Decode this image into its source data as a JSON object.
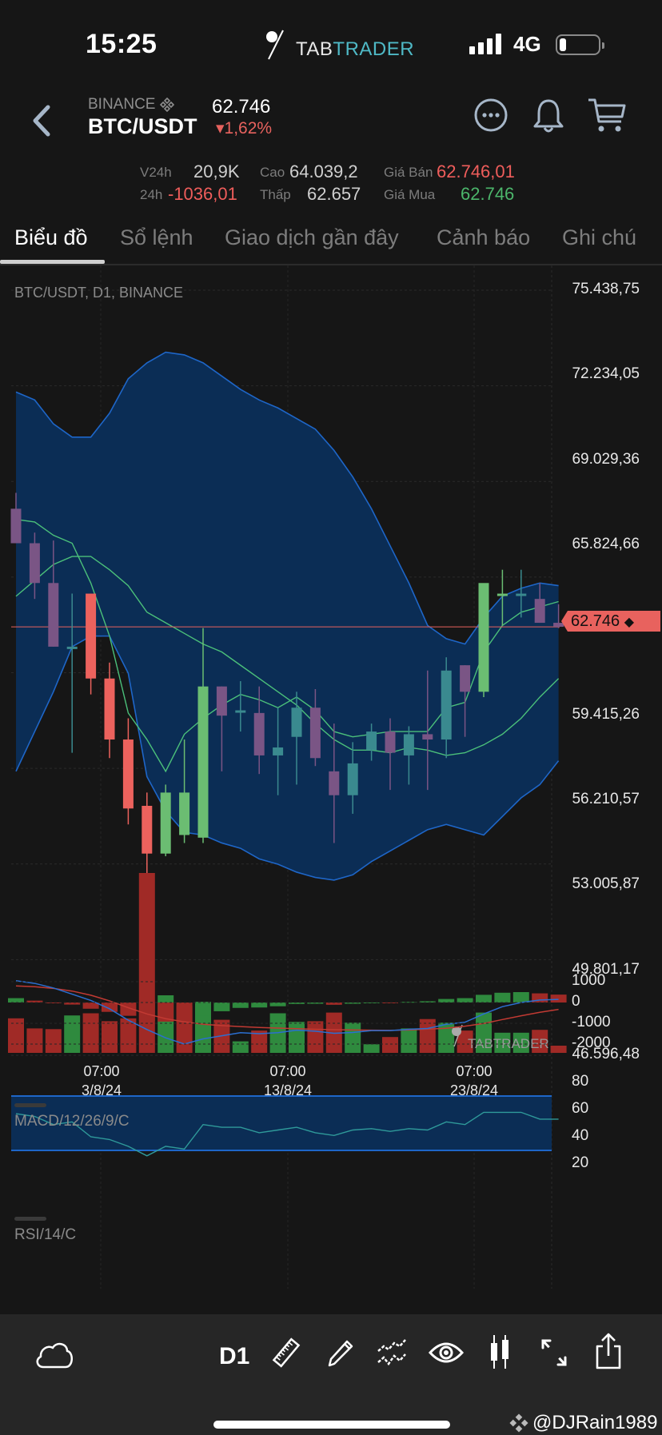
{
  "status_bar": {
    "time": "15:25",
    "logo_part1": "TAB",
    "logo_part2": "TRADER",
    "network": "4G",
    "signal_bars": 4
  },
  "header": {
    "back_icon": "chevron-left-icon",
    "exchange": "BINANCE",
    "pair": "BTC/USDT",
    "last_price": "62.746",
    "change_pct": "▾1,62%",
    "actions": [
      "more-icon",
      "bell-icon",
      "cart-icon"
    ]
  },
  "stats": {
    "v24h_label": "V24h",
    "v24h_value": "20,9K",
    "c24h_label": "24h",
    "c24h_value": "-1036,01",
    "high_label": "Cao",
    "high_value": "64.039,2",
    "low_label": "Thấp",
    "low_value": "62.657",
    "ask_label": "Giá Bán",
    "ask_value": "62.746,01",
    "bid_label": "Giá Mua",
    "bid_value": "62.746"
  },
  "tabs": [
    {
      "label": "Biểu đồ",
      "active": true
    },
    {
      "label": "Sổ lệnh",
      "active": false
    },
    {
      "label": "Giao dịch gần đây",
      "active": false
    },
    {
      "label": "Cảnh báo",
      "active": false
    },
    {
      "label": "Ghi chú",
      "active": false
    }
  ],
  "chart": {
    "title": "BTC/USDT, D1, BINANCE",
    "price_tag": "62.746",
    "watermark": "TABTRADER",
    "y_axis": [
      "75.438,75",
      "72.234,05",
      "69.029,36",
      "65.824,66",
      "59.415,26",
      "56.210,57",
      "53.005,87",
      "49.801,17",
      "46.596,48"
    ],
    "x_axis": [
      {
        "time": "07:00",
        "date": "3/8/24"
      },
      {
        "time": "07:00",
        "date": "13/8/24"
      },
      {
        "time": "07:00",
        "date": "23/8/24"
      }
    ],
    "macd_label": "MACD/12/26/9/C",
    "macd_axis": [
      "1000",
      "0",
      "-1000",
      "-2000"
    ],
    "rsi_label": "RSI/14/C",
    "rsi_axis": [
      "80",
      "60",
      "40",
      "20"
    ]
  },
  "chart_data": {
    "type": "candlestick",
    "title": "BTC/USDT, D1, BINANCE",
    "ylim": [
      46596.48,
      75438.75
    ],
    "ohlc": [
      [
        67200,
        67800,
        65900,
        65900
      ],
      [
        65900,
        66300,
        63800,
        64400
      ],
      [
        64400,
        66000,
        62000,
        62000
      ],
      [
        62000,
        64000,
        58000,
        62000
      ],
      [
        64000,
        64000,
        60200,
        60800
      ],
      [
        60800,
        61400,
        57800,
        58500
      ],
      [
        58500,
        59300,
        55300,
        55900
      ],
      [
        56000,
        56500,
        49300,
        54200
      ],
      [
        54200,
        56800,
        54100,
        56500
      ],
      [
        54900,
        58500,
        54600,
        56500
      ],
      [
        54800,
        62700,
        54600,
        60500
      ],
      [
        60500,
        60500,
        57300,
        59400
      ],
      [
        59600,
        60700,
        58800,
        59600
      ],
      [
        59500,
        60500,
        57200,
        57900
      ],
      [
        57900,
        59700,
        56400,
        58200
      ],
      [
        58600,
        60300,
        56800,
        59700
      ],
      [
        59700,
        60400,
        57500,
        57800
      ],
      [
        57300,
        59100,
        54600,
        56400
      ],
      [
        56400,
        58400,
        55700,
        57600
      ],
      [
        58100,
        59100,
        57700,
        58800
      ],
      [
        58800,
        59300,
        56600,
        58000
      ],
      [
        57900,
        59000,
        56800,
        58700
      ],
      [
        58700,
        61100,
        56600,
        58500
      ],
      [
        58500,
        61600,
        57800,
        61100
      ],
      [
        61300,
        61300,
        58600,
        60300
      ],
      [
        60300,
        64200,
        60100,
        64400
      ],
      [
        64000,
        64900,
        62800,
        64000
      ],
      [
        64000,
        64900,
        63100,
        64000
      ],
      [
        63800,
        64400,
        62900,
        62900
      ],
      [
        62900,
        63600,
        62700,
        62750
      ]
    ],
    "bollinger_upper": [
      71600,
      71300,
      70400,
      69900,
      69900,
      70800,
      72100,
      72700,
      73100,
      73000,
      72700,
      72200,
      71700,
      71300,
      71000,
      70600,
      70200,
      69400,
      68400,
      67200,
      65800,
      64400,
      62800,
      62300,
      62100,
      63100,
      63900,
      64200,
      64400,
      64300
    ],
    "bollinger_lower": [
      57300,
      58800,
      60300,
      62000,
      62400,
      62400,
      61000,
      57100,
      55800,
      55000,
      54900,
      54600,
      54400,
      54000,
      53800,
      53500,
      53300,
      53200,
      53400,
      53900,
      54300,
      54700,
      55100,
      55300,
      55100,
      54900,
      55600,
      56300,
      56800,
      57700
    ],
    "ma_fast": [
      66800,
      66700,
      66200,
      65900,
      64400,
      62400,
      59500,
      58500,
      57300,
      58700,
      59300,
      59800,
      60200,
      60000,
      59700,
      60100,
      59600,
      58800,
      58600,
      58700,
      58800,
      58800,
      58800,
      59700,
      59900,
      61800,
      62800,
      63300,
      63500,
      63700
    ],
    "ma_slow": [
      63900,
      64500,
      65100,
      65400,
      65400,
      64900,
      64300,
      63300,
      62900,
      62500,
      62100,
      61800,
      61300,
      60800,
      60300,
      59800,
      59100,
      58500,
      58100,
      58100,
      58000,
      58200,
      58100,
      57900,
      58000,
      58300,
      58700,
      59300,
      60100,
      60800
    ],
    "volume": [
      {
        "v": 48,
        "c": "red"
      },
      {
        "v": 34,
        "c": "red"
      },
      {
        "v": 33,
        "c": "red"
      },
      {
        "v": 52,
        "c": "green"
      },
      {
        "v": 55,
        "c": "red"
      },
      {
        "v": 44,
        "c": "red"
      },
      {
        "v": 48,
        "c": "red"
      },
      {
        "v": 250,
        "c": "red"
      },
      {
        "v": 80,
        "c": "green"
      },
      {
        "v": 65,
        "c": "red"
      },
      {
        "v": 71,
        "c": "green"
      },
      {
        "v": 46,
        "c": "red"
      },
      {
        "v": 16,
        "c": "green"
      },
      {
        "v": 31,
        "c": "red"
      },
      {
        "v": 55,
        "c": "green"
      },
      {
        "v": 43,
        "c": "green"
      },
      {
        "v": 44,
        "c": "red"
      },
      {
        "v": 56,
        "c": "red"
      },
      {
        "v": 42,
        "c": "green"
      },
      {
        "v": 12,
        "c": "green"
      },
      {
        "v": 22,
        "c": "red"
      },
      {
        "v": 34,
        "c": "green"
      },
      {
        "v": 47,
        "c": "red"
      },
      {
        "v": 42,
        "c": "green"
      },
      {
        "v": 31,
        "c": "red"
      },
      {
        "v": 56,
        "c": "green"
      },
      {
        "v": 28,
        "c": "green"
      },
      {
        "v": 28,
        "c": "green"
      },
      {
        "v": 32,
        "c": "red"
      },
      {
        "v": 10,
        "c": "red"
      }
    ],
    "macd_hist": [
      210,
      90,
      -30,
      -100,
      -300,
      -450,
      -640,
      -880,
      -920,
      -930,
      -620,
      -420,
      -260,
      -240,
      -180,
      -70,
      -60,
      -110,
      -60,
      -10,
      -10,
      30,
      60,
      170,
      210,
      370,
      470,
      500,
      440,
      380
    ],
    "macd_line": [
      1050,
      920,
      700,
      400,
      100,
      -300,
      -850,
      -1300,
      -1700,
      -2000,
      -1750,
      -1600,
      -1450,
      -1500,
      -1450,
      -1330,
      -1380,
      -1480,
      -1440,
      -1350,
      -1350,
      -1290,
      -1250,
      -1050,
      -950,
      -550,
      -200,
      0,
      120,
      150
    ],
    "macd_signal": [
      800,
      760,
      680,
      550,
      350,
      80,
      -250,
      -550,
      -780,
      -930,
      -1050,
      -1110,
      -1160,
      -1200,
      -1230,
      -1260,
      -1290,
      -1310,
      -1320,
      -1330,
      -1340,
      -1320,
      -1280,
      -1240,
      -1140,
      -1010,
      -820,
      -640,
      -470,
      -330
    ],
    "rsi": [
      57,
      55,
      49,
      51,
      40,
      38,
      33,
      26,
      33,
      31,
      49,
      47,
      47,
      43,
      45,
      47,
      43,
      41,
      45,
      46,
      44,
      46,
      45,
      51,
      49,
      58,
      58,
      58,
      53,
      53
    ],
    "rsi_bands": [
      30,
      70
    ]
  },
  "toolbar": {
    "interval": "D1",
    "icons": [
      "cloud-icon",
      "ruler-icon",
      "pencil-icon",
      "indicators-icon",
      "eye-icon",
      "candles-icon",
      "expand-icon",
      "share-icon"
    ]
  },
  "watermark_user": "@DJRain1989"
}
